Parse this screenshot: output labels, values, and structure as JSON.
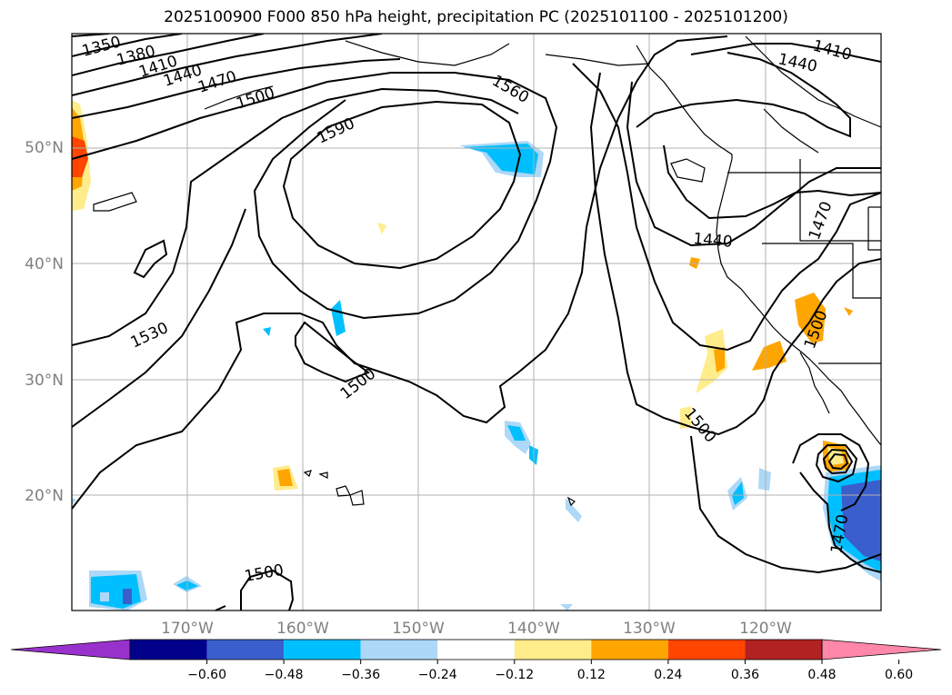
{
  "title": "2025100900 F000 850 hPa height, precipitation PC (2025101100 - 2025101200)",
  "map": {
    "lat_labels": [
      "50°N",
      "40°N",
      "30°N",
      "20°N"
    ],
    "lon_labels": [
      "170°W",
      "160°W",
      "150°W",
      "140°W",
      "130°W",
      "120°W"
    ],
    "contour_labels": [
      "1350",
      "1380",
      "1410",
      "1440",
      "1470",
      "1500",
      "1560",
      "1590",
      "1410",
      "1440",
      "1470",
      "1440",
      "1500",
      "1530",
      "1500",
      "1500",
      "1500",
      "1470"
    ]
  },
  "colorbar": {
    "ticks": [
      "−0.60",
      "−0.48",
      "−0.36",
      "−0.24",
      "−0.12",
      "0.12",
      "0.24",
      "0.36",
      "0.48",
      "0.60"
    ],
    "colors": [
      "#9932cc",
      "#00008b",
      "#3a5fcd",
      "#00bfff",
      "#add8f7",
      "#ffffff",
      "#ffec8b",
      "#ffa500",
      "#ff4500",
      "#b22222",
      "#ff88aa"
    ]
  },
  "colors": {
    "grid": "#b0b0b0",
    "contour": "#000000",
    "coast": "#000000"
  }
}
